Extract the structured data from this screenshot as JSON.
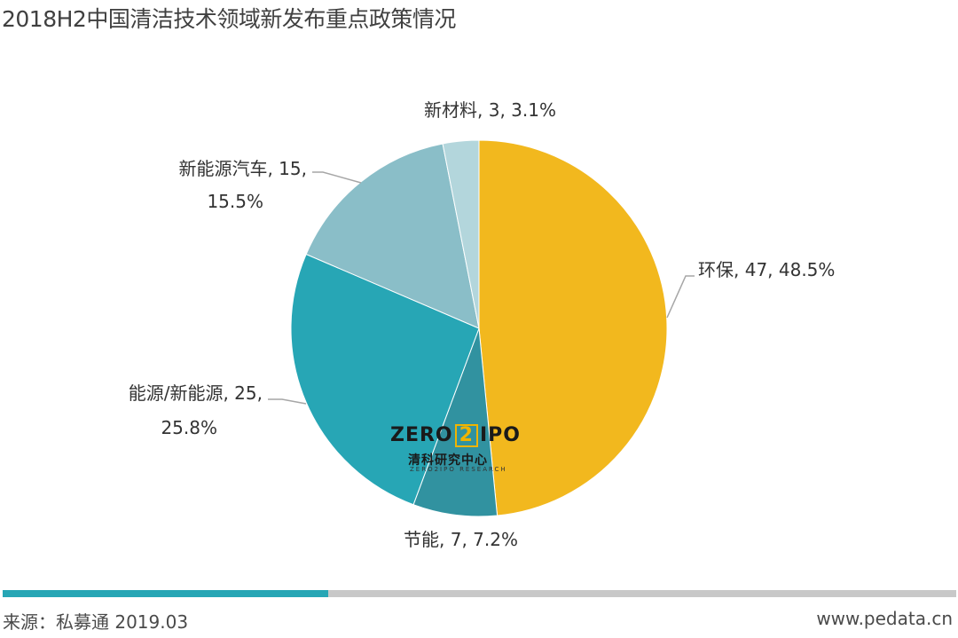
{
  "title": "2018H2中国清洁技术领域新发布重点政策情况",
  "chart_data": {
    "type": "pie",
    "slices": [
      {
        "name": "环保",
        "value": 47,
        "percent": "48.5%",
        "color": "#f2b81e"
      },
      {
        "name": "节能",
        "value": 7,
        "percent": "7.2%",
        "color": "#3192a0"
      },
      {
        "name": "能源/新能源",
        "value": 25,
        "percent": "25.8%",
        "color": "#27a6b5"
      },
      {
        "name": "新能源汽车",
        "value": 15,
        "percent": "15.5%",
        "color": "#8abec8"
      },
      {
        "name": "新材料",
        "value": 3,
        "percent": "3.1%",
        "color": "#b3d6dc"
      }
    ],
    "labels": [
      {
        "line1": "环保, 47, 48.5%",
        "line2": ""
      },
      {
        "line1": "节能, 7, 7.2%",
        "line2": ""
      },
      {
        "line1": "能源/新能源, 25,",
        "line2": "25.8%"
      },
      {
        "line1": "新能源汽车, 15,",
        "line2": "15.5%"
      },
      {
        "line1": "新材料, 3, 3.1%",
        "line2": ""
      }
    ]
  },
  "watermark": {
    "brand_left": "ZERO",
    "brand_mid": "2",
    "brand_right": "IPO",
    "cn": "清科研究中心",
    "en": "ZERO2IPO RESEARCH"
  },
  "footer": {
    "source": "来源：私募通 2019.03",
    "site": "www.pedata.cn",
    "accent_color": "#27a6b5"
  }
}
